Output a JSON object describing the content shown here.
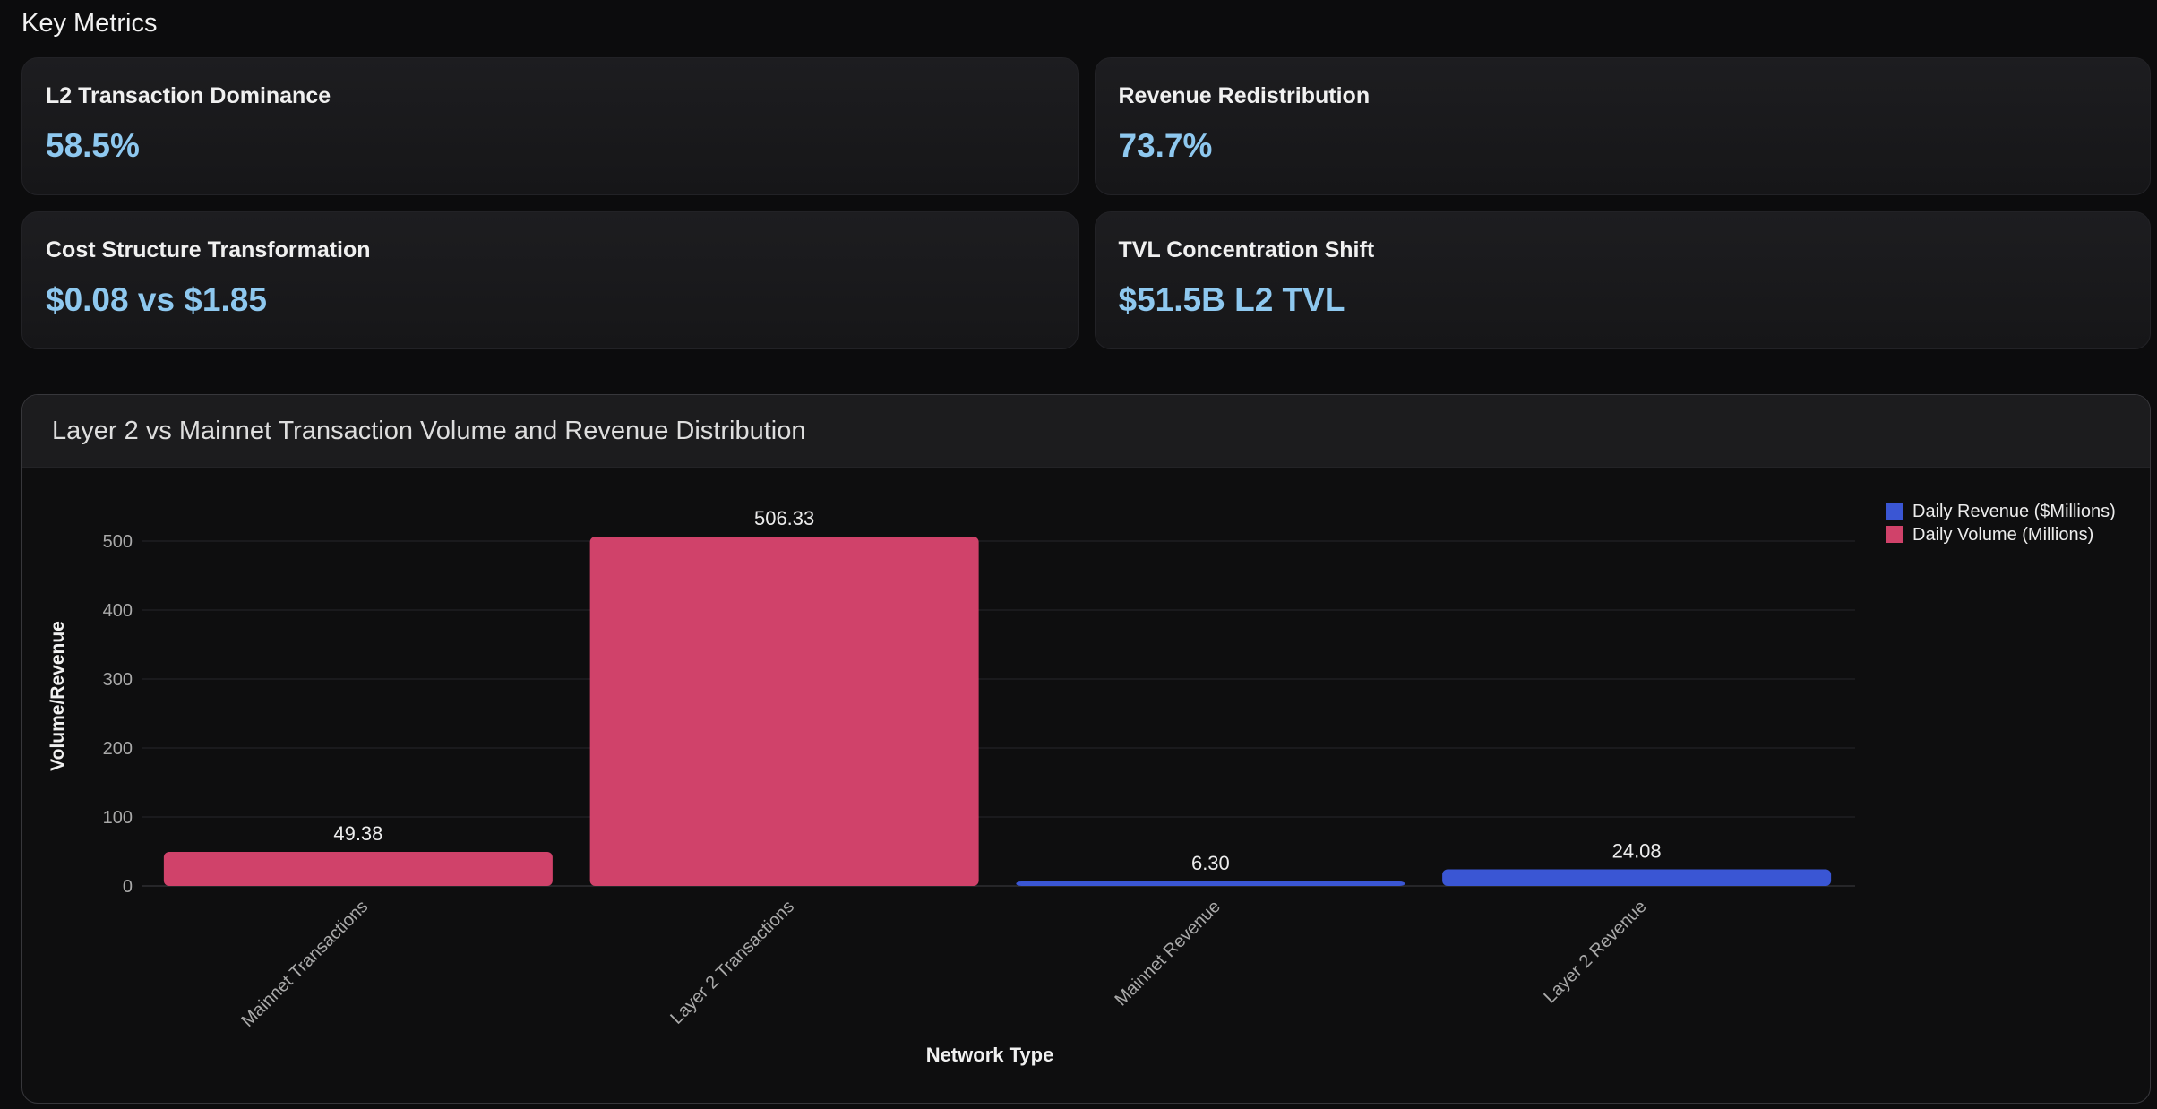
{
  "section": {
    "title": "Key Metrics"
  },
  "metrics": [
    {
      "label": "L2 Transaction Dominance",
      "value": "58.5%"
    },
    {
      "label": "Revenue Redistribution",
      "value": "73.7%"
    },
    {
      "label": "Cost Structure Transformation",
      "value": "$0.08 vs $1.85"
    },
    {
      "label": "TVL Concentration Shift",
      "value": "$51.5B L2 TVL"
    }
  ],
  "colors": {
    "volume": "#d0426a",
    "revenue": "#3a56d4",
    "metric_value": "#8ec8ef"
  },
  "chart_data": {
    "type": "bar",
    "title": "Layer 2 vs Mainnet Transaction Volume and Revenue Distribution",
    "xlabel": "Network Type",
    "ylabel": "Volume/Revenue",
    "ylim": [
      0,
      500
    ],
    "yticks": [
      0,
      100,
      200,
      300,
      400,
      500
    ],
    "grid": true,
    "legend_position": "top-right",
    "categories": [
      "Mainnet Transactions",
      "Layer 2 Transactions",
      "Mainnet Revenue",
      "Layer 2 Revenue"
    ],
    "series": [
      {
        "name": "Daily Revenue ($Millions)",
        "color": "#3a56d4",
        "values": [
          null,
          null,
          6.3,
          24.08
        ]
      },
      {
        "name": "Daily Volume (Millions)",
        "color": "#d0426a",
        "values": [
          49.38,
          506.33,
          null,
          null
        ]
      }
    ],
    "data_labels": [
      "49.38",
      "506.33",
      "6.30",
      "24.08"
    ]
  }
}
